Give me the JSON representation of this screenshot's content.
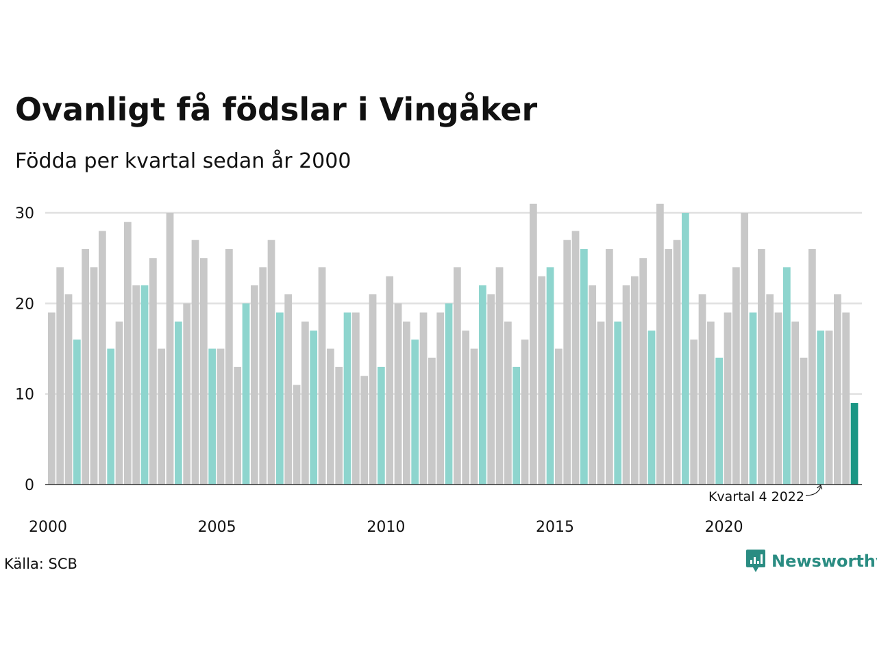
{
  "title": "Ovanligt få födslar i Vingåker",
  "subtitle": "Födda per kvartal sedan år 2000",
  "source": "Källa: SCB",
  "brand": {
    "name": "Newsworthy",
    "icon": "newsworthy-logo-icon"
  },
  "colors": {
    "default": "#c8c8c8",
    "same_quarter": "#8ed5ce",
    "current": "#1a9684",
    "grid": "#e0e0e0",
    "axis": "#333333",
    "brand": "#2a8c82"
  },
  "chart_data": {
    "type": "bar",
    "y_ticks": [
      0,
      10,
      20,
      30
    ],
    "x_ticks": [
      "2000",
      "2005",
      "2010",
      "2015",
      "2020"
    ],
    "ylim": [
      0,
      31
    ],
    "grid": true,
    "annotation": "Kvartal 4 2022",
    "series": [
      {
        "values": [
          19,
          24,
          21,
          16,
          26,
          24,
          28,
          15,
          18,
          29,
          22,
          22,
          25,
          15,
          30,
          18,
          20,
          27,
          25,
          15,
          15,
          26,
          13,
          20,
          22,
          24,
          27,
          19,
          21,
          11,
          18,
          17,
          24,
          15,
          13,
          19,
          19,
          12,
          21,
          13,
          23,
          20,
          18,
          16,
          19,
          14,
          19,
          20,
          24,
          17,
          15,
          22,
          21,
          24,
          18,
          13,
          16,
          31,
          23,
          24,
          15,
          27,
          28,
          26,
          22,
          18,
          26,
          18,
          22,
          23,
          25,
          17,
          31,
          26,
          27,
          30,
          16,
          21,
          18,
          14,
          19,
          24,
          30,
          19,
          26,
          21,
          19,
          24,
          18,
          14,
          26,
          17,
          17,
          21,
          19,
          9
        ],
        "highlight": [
          3,
          7,
          11,
          15,
          19,
          23,
          27,
          31,
          35,
          39,
          43,
          47,
          51,
          55,
          59,
          63,
          67,
          71,
          75,
          79,
          83,
          87,
          91
        ],
        "current": 95
      }
    ]
  }
}
